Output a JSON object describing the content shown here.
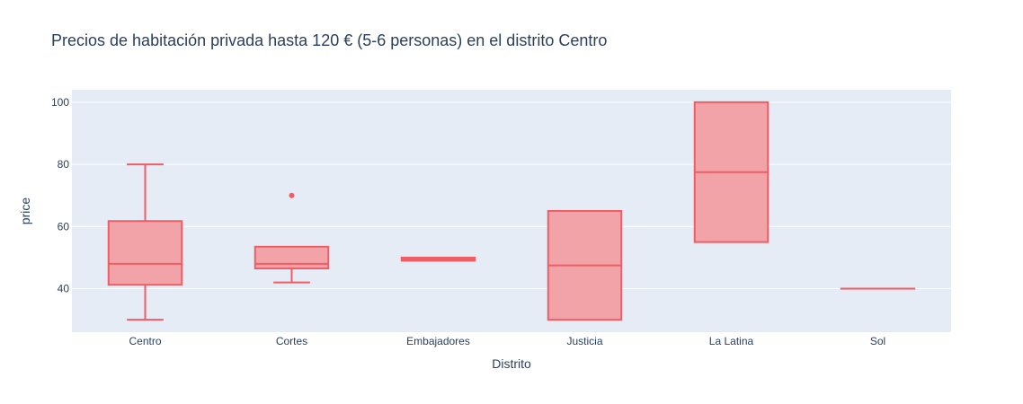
{
  "chart_data": {
    "type": "box",
    "title": "Precios de habitación privada hasta 120 € (5-6 personas) en el distrito Centro",
    "xlabel": "Distrito",
    "ylabel": "price",
    "ylim": [
      26,
      104
    ],
    "yticks": [
      40,
      60,
      80,
      100
    ],
    "categories": [
      "Centro",
      "Cortes",
      "Embajadores",
      "Justicia",
      "La Latina",
      "Sol"
    ],
    "boxes": [
      {
        "category": "Centro",
        "whisker_low": 30,
        "q1": 41.25,
        "median": 48,
        "q3": 61.75,
        "whisker_high": 80,
        "outliers": []
      },
      {
        "category": "Cortes",
        "whisker_low": 42,
        "q1": 46.5,
        "median": 48,
        "q3": 53.5,
        "whisker_high": 53.5,
        "outliers": [
          70
        ]
      },
      {
        "category": "Embajadores",
        "whisker_low": 49,
        "q1": 49,
        "median": 49.5,
        "q3": 50,
        "whisker_high": 50,
        "outliers": []
      },
      {
        "category": "Justicia",
        "whisker_low": 30,
        "q1": 30,
        "median": 47.5,
        "q3": 65,
        "whisker_high": 65,
        "outliers": []
      },
      {
        "category": "La Latina",
        "whisker_low": 55,
        "q1": 55,
        "median": 77.5,
        "q3": 100,
        "whisker_high": 100,
        "outliers": []
      },
      {
        "category": "Sol",
        "whisker_low": 40,
        "q1": 40,
        "median": 40,
        "q3": 40,
        "whisker_high": 40,
        "outliers": []
      }
    ],
    "grid": true,
    "colors": {
      "plot_bg": "#e5ecf6",
      "grid": "#ffffff",
      "box_line": "#ef5d65",
      "box_fill": "#f2a3a8",
      "text": "#2a3f5f"
    }
  }
}
